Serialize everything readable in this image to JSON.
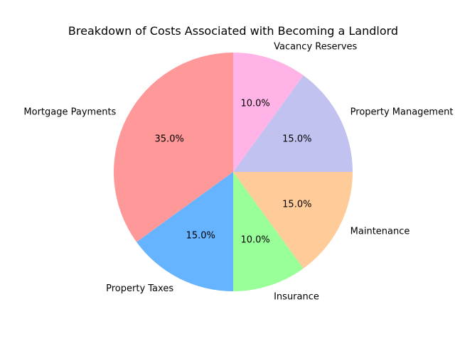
{
  "chart_data": {
    "type": "pie",
    "title": "Breakdown of Costs Associated with Becoming a Landlord",
    "slices": [
      {
        "label": "Mortgage Payments",
        "value": 35.0,
        "pct_label": "35.0%",
        "color": "#ff9999"
      },
      {
        "label": "Property Taxes",
        "value": 15.0,
        "pct_label": "15.0%",
        "color": "#66b3ff"
      },
      {
        "label": "Insurance",
        "value": 10.0,
        "pct_label": "10.0%",
        "color": "#99ff99"
      },
      {
        "label": "Maintenance",
        "value": 15.0,
        "pct_label": "15.0%",
        "color": "#ffcc99"
      },
      {
        "label": "Property Management",
        "value": 15.0,
        "pct_label": "15.0%",
        "color": "#c2c2f0"
      },
      {
        "label": "Vacancy Reserves",
        "value": 10.0,
        "pct_label": "10.0%",
        "color": "#ffb3e6"
      }
    ],
    "start_angle": "top",
    "direction": "counterclockwise",
    "legend": "none"
  }
}
